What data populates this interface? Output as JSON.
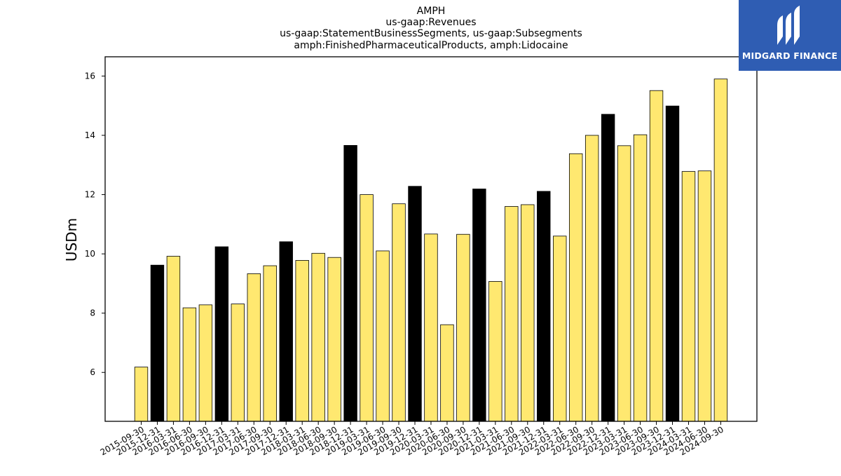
{
  "brand": {
    "name": "MIDGARD FINANCE",
    "color": "#2f5db3",
    "icon": "midgard-logo-icon"
  },
  "chart_data": {
    "type": "bar",
    "title_lines": [
      "AMPH",
      "us-gaap:Revenues",
      "us-gaap:StatementBusinessSegments, us-gaap:Subsegments",
      "amph:FinishedPharmaceuticalProducts, amph:Lidocaine"
    ],
    "xlabel": "",
    "ylabel": "USDm",
    "ylim": [
      4.35,
      16.65
    ],
    "yticks": [
      6,
      8,
      10,
      12,
      14,
      16
    ],
    "grid": false,
    "legend": "none",
    "colors": {
      "quarter": "#ffe870",
      "year_end": "#000000",
      "edge": "#000000"
    },
    "categories": [
      "2015-09-30",
      "2015-12-31",
      "2016-03-31",
      "2016-06-30",
      "2016-09-30",
      "2016-12-31",
      "2017-03-31",
      "2017-06-30",
      "2017-09-30",
      "2017-12-31",
      "2018-03-31",
      "2018-06-30",
      "2018-09-30",
      "2018-12-31",
      "2019-03-31",
      "2019-06-30",
      "2019-09-30",
      "2019-12-31",
      "2020-03-31",
      "2020-06-30",
      "2020-09-30",
      "2020-12-31",
      "2021-03-31",
      "2021-06-30",
      "2021-09-30",
      "2021-12-31",
      "2022-03-31",
      "2022-06-30",
      "2022-09-30",
      "2022-12-31",
      "2023-03-31",
      "2023-06-30",
      "2023-09-30",
      "2023-12-31",
      "2024-03-31",
      "2024-06-30",
      "2024-09-30"
    ],
    "values": [
      6.18,
      9.62,
      9.92,
      8.18,
      8.28,
      10.24,
      8.31,
      9.33,
      9.6,
      10.41,
      9.78,
      10.02,
      9.88,
      13.66,
      12.0,
      10.1,
      11.69,
      12.28,
      10.67,
      7.61,
      10.66,
      12.19,
      9.07,
      11.6,
      11.66,
      12.11,
      10.6,
      13.38,
      14.0,
      14.71,
      13.65,
      14.02,
      15.51,
      14.99,
      12.78,
      12.8,
      15.9
    ]
  }
}
